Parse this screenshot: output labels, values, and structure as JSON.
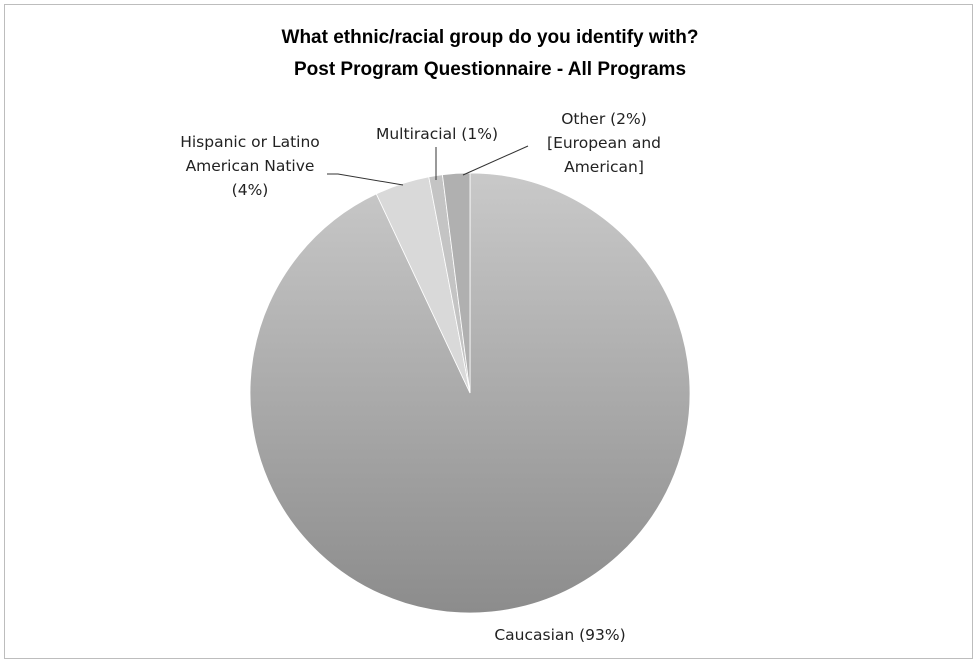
{
  "chart_data": {
    "type": "pie",
    "title": "What ethnic/racial group do you identify with?",
    "subtitle": "Post Program Questionnaire - All Programs",
    "slices": [
      {
        "label_lines": [
          "Caucasian (93%)"
        ],
        "value": 93
      },
      {
        "label_lines": [
          "Hispanic or Latino",
          "American Native",
          "(4%)"
        ],
        "value": 4
      },
      {
        "label_lines": [
          "Multiracial (1%)"
        ],
        "value": 1
      },
      {
        "label_lines": [
          "Other (2%)",
          "[European and",
          "American]"
        ],
        "value": 2
      }
    ],
    "colors": [
      "#9e9e9e",
      "#d9d9d9",
      "#c4c4c4",
      "#b0b0b0"
    ]
  }
}
